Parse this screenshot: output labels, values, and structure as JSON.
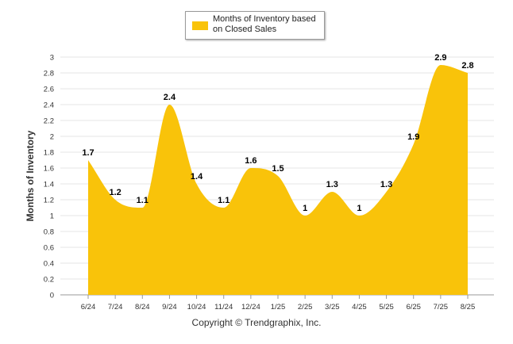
{
  "legend": {
    "label": "Months of Inventory based on Closed Sales"
  },
  "footer": {
    "copyright": "Copyright © Trendgraphix, Inc."
  },
  "colors": {
    "fill": "#F9C30A",
    "grid": "#e6e6e6",
    "axis": "#999999",
    "text": "#333333"
  },
  "chart_data": {
    "type": "area",
    "categories": [
      "6/24",
      "7/24",
      "8/24",
      "9/24",
      "10/24",
      "11/24",
      "12/24",
      "1/25",
      "2/25",
      "3/25",
      "4/25",
      "5/25",
      "6/25",
      "7/25",
      "8/25"
    ],
    "series": [
      {
        "name": "Months of Inventory based on Closed Sales",
        "values": [
          1.7,
          1.2,
          1.1,
          2.4,
          1.4,
          1.1,
          1.6,
          1.5,
          1,
          1.3,
          1,
          1.3,
          1.9,
          2.9,
          2.8
        ]
      }
    ],
    "data_labels": [
      "1.7",
      "1.2",
      "1.1",
      "2.4",
      "1.4",
      "1.1",
      "1.6",
      "1.5",
      "1",
      "1.3",
      "1",
      "1.3",
      "1.9",
      "2.9",
      "2.8"
    ],
    "ylabel": "Months of Inventory",
    "xlabel": "",
    "ylim": [
      0,
      3
    ],
    "yticks": [
      "0",
      "0.2",
      "0.4",
      "0.6",
      "0.8",
      "1",
      "1.2",
      "1.4",
      "1.6",
      "1.8",
      "2",
      "2.2",
      "2.4",
      "2.6",
      "2.8",
      "3"
    ],
    "grid": true,
    "legend_position": "top-center"
  }
}
